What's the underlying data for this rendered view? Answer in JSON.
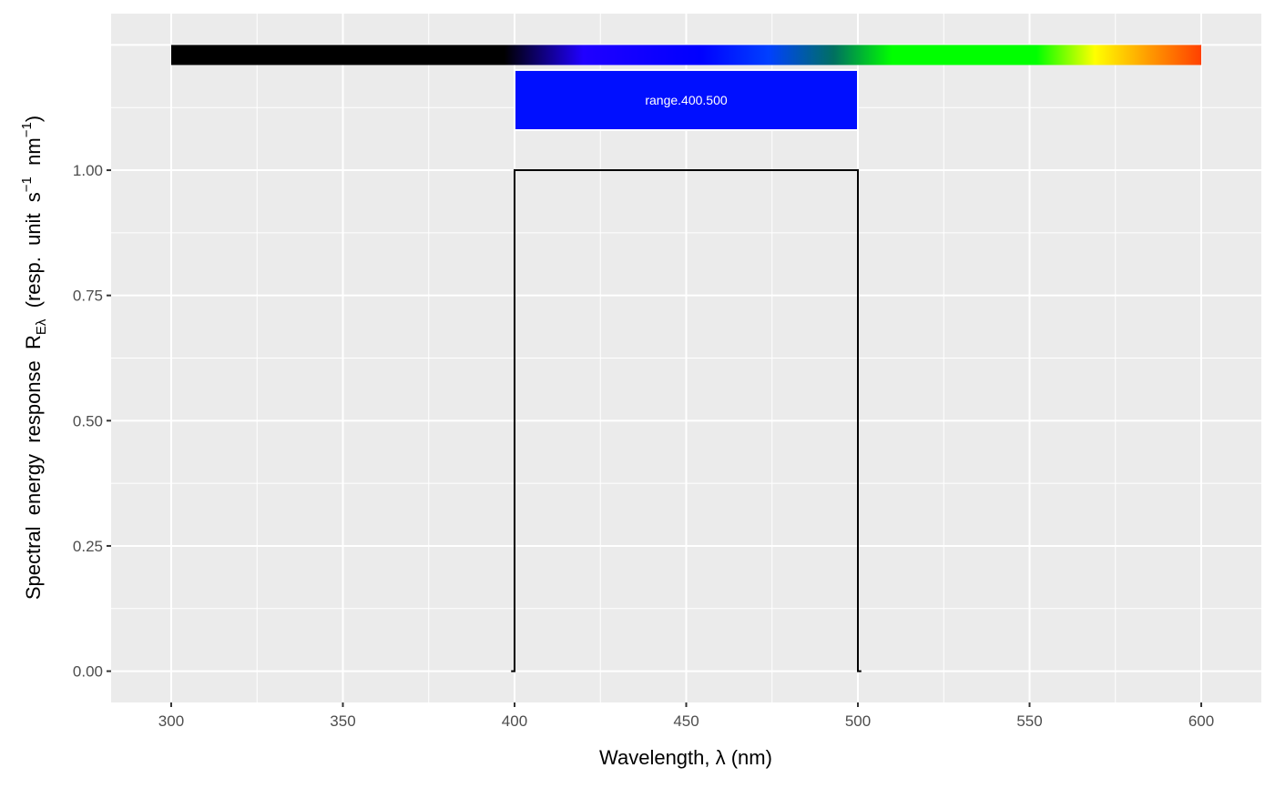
{
  "chart_data": {
    "type": "line",
    "title": "",
    "xlabel": "Wavelength, λ (nm)",
    "ylabel": {
      "main": "Spectral  energy  response  R",
      "sub": "Eλ",
      "unit_open": "  (resp.  unit  s",
      "sup1": "−1",
      "unit_mid": "  nm",
      "sup2": "−1",
      "unit_close": ")"
    },
    "xlim": [
      282.5,
      617.5
    ],
    "ylim": [
      -0.0625,
      1.3125
    ],
    "x_ticks": [
      300,
      350,
      400,
      450,
      500,
      550,
      600
    ],
    "x_tick_labels": [
      "300",
      "350",
      "400",
      "450",
      "500",
      "550",
      "600"
    ],
    "y_ticks": [
      0,
      0.25,
      0.5,
      0.75,
      1.0
    ],
    "y_tick_labels": [
      "0.00",
      "0.25",
      "0.50",
      "0.75",
      "1.00"
    ],
    "grid": true,
    "series": [
      {
        "x": [
          399,
          400,
          400,
          500,
          500,
          501
        ],
        "y": [
          0,
          0,
          1,
          1,
          0,
          0
        ],
        "color": "#000000"
      }
    ],
    "annotations": {
      "wavelength_color_bar": {
        "xmin": 300,
        "xmax": 600,
        "ymin": 1.21,
        "ymax": 1.25,
        "stops": [
          [
            300,
            "#000000"
          ],
          [
            380,
            "#000000"
          ],
          [
            397,
            "#000000"
          ],
          [
            420,
            "#2000ff"
          ],
          [
            454,
            "#0000ff"
          ],
          [
            474,
            "#0040ff"
          ],
          [
            493,
            "#007060"
          ],
          [
            510,
            "#00ff00"
          ],
          [
            552,
            "#00ff00"
          ],
          [
            569,
            "#ffff00"
          ],
          [
            585,
            "#ff9900"
          ],
          [
            600,
            "#ff4000"
          ]
        ]
      },
      "range_box": {
        "label": "range.400.500",
        "xmin": 400,
        "xmax": 500,
        "ymin": 1.08,
        "ymax": 1.2,
        "fill": "#000fff",
        "text_color": "#ffffff"
      }
    },
    "colors": {
      "panel": "#ebebeb",
      "grid": "#ffffff"
    }
  }
}
